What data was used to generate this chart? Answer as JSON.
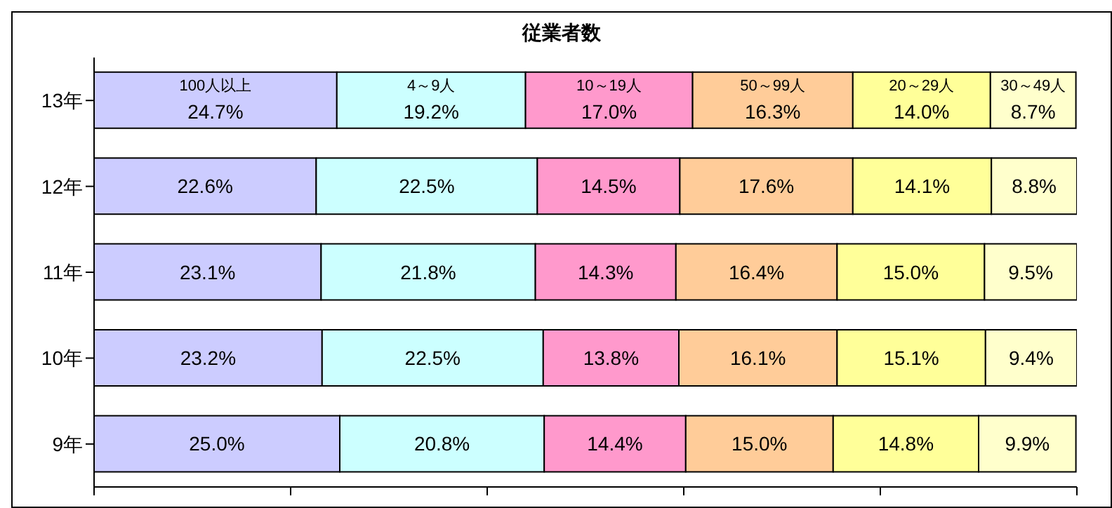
{
  "chart_data": {
    "type": "bar",
    "orientation": "horizontal",
    "stacked": true,
    "title": "従業者数",
    "categories": [
      "13年",
      "12年",
      "11年",
      "10年",
      "9年"
    ],
    "xlim": [
      0,
      100
    ],
    "xticks": [
      {
        "value": 0,
        "label": null
      },
      {
        "value": 20,
        "label": null
      },
      {
        "value": 40,
        "label": null
      },
      {
        "value": 60,
        "label": null
      },
      {
        "value": 80,
        "label": null
      },
      {
        "value": 100,
        "label": null
      }
    ],
    "tick_labels": "y",
    "grid": false,
    "legend": false,
    "series": [
      {
        "name": "100人以上",
        "color": "#ccccff",
        "values": [
          24.7,
          22.6,
          23.1,
          23.2,
          25.0
        ],
        "value_labels": [
          "24.7%",
          "22.6%",
          "23.1%",
          "23.2%",
          "25.0%"
        ]
      },
      {
        "name": "4～9人",
        "color": "#ccffff",
        "values": [
          19.2,
          22.5,
          21.8,
          22.5,
          20.8
        ],
        "value_labels": [
          "19.2%",
          "22.5%",
          "21.8%",
          "22.5%",
          "20.8%"
        ]
      },
      {
        "name": "10～19人",
        "color": "#ff99cc",
        "values": [
          17.0,
          14.5,
          14.3,
          13.8,
          14.4
        ],
        "value_labels": [
          "17.0%",
          "14.5%",
          "14.3%",
          "13.8%",
          "14.4%"
        ]
      },
      {
        "name": "50～99人",
        "color": "#ffcc99",
        "values": [
          16.3,
          17.6,
          16.4,
          16.1,
          15.0
        ],
        "value_labels": [
          "16.3%",
          "17.6%",
          "16.4%",
          "16.1%",
          "15.0%"
        ]
      },
      {
        "name": "20～29人",
        "color": "#ffff99",
        "values": [
          14.0,
          14.1,
          15.0,
          15.1,
          14.8
        ],
        "value_labels": [
          "14.0%",
          "14.1%",
          "15.0%",
          "15.1%",
          "14.8%"
        ]
      },
      {
        "name": "30～49人",
        "color": "#ffffcc",
        "values": [
          8.7,
          8.8,
          9.5,
          9.4,
          9.9
        ],
        "value_labels": [
          "8.7%",
          "8.8%",
          "9.5%",
          "9.4%",
          "9.9%"
        ]
      }
    ]
  }
}
